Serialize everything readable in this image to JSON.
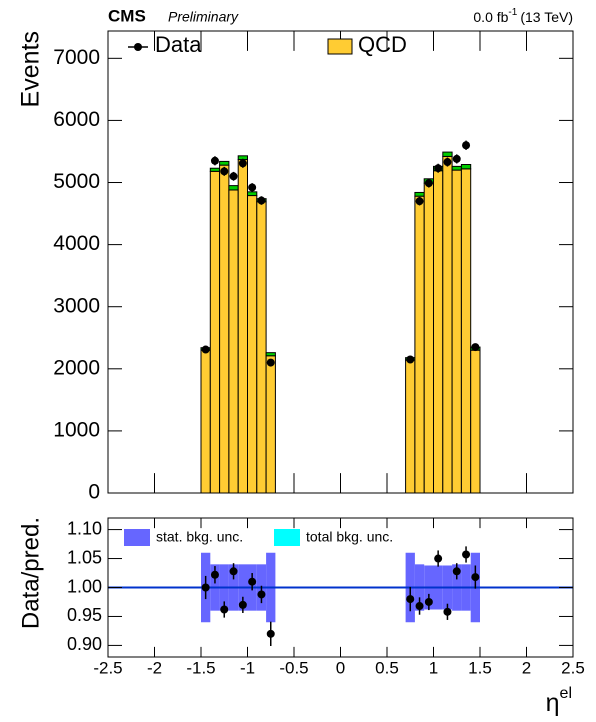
{
  "chart_data": [
    {
      "type": "histogram",
      "experiment": "CMS",
      "status": "Preliminary",
      "lumi": "0.0 fb",
      "lumi_sup": "-1",
      "energy": "(13 TeV)",
      "ylabel": "Events",
      "bins": [
        -1.5,
        -1.4,
        -1.3,
        -1.2,
        -1.1,
        -1.0,
        -0.9,
        -0.8,
        -0.7,
        -0.6,
        -0.5,
        -0.4,
        -0.3,
        -0.2,
        -0.1,
        0,
        0.1,
        0.2,
        0.3,
        0.4,
        0.5,
        0.6,
        0.7,
        0.8,
        0.9,
        1.0,
        1.1,
        1.2,
        1.3,
        1.4,
        1.5
      ],
      "series": [
        {
          "name": "QCD",
          "color": "#ffcc33",
          "values": [
            2300,
            5180,
            5280,
            4880,
            5370,
            4790,
            4690,
            2210,
            null,
            null,
            null,
            null,
            null,
            null,
            null,
            null,
            null,
            null,
            null,
            null,
            null,
            null,
            2140,
            4780,
            4990,
            5190,
            5420,
            5200,
            5220,
            2300
          ]
        },
        {
          "color": "#00cc00",
          "values": [
            40,
            50,
            60,
            70,
            60,
            60,
            50,
            50,
            null,
            null,
            null,
            null,
            null,
            null,
            null,
            null,
            null,
            null,
            null,
            null,
            null,
            null,
            40,
            60,
            70,
            70,
            70,
            60,
            70,
            50
          ]
        }
      ],
      "data": {
        "name": "Data",
        "color": "#000000",
        "values": [
          2310,
          5350,
          5180,
          5100,
          5310,
          4920,
          4710,
          2100,
          null,
          null,
          null,
          null,
          null,
          null,
          null,
          null,
          null,
          null,
          null,
          null,
          null,
          null,
          2150,
          4700,
          4990,
          5230,
          5330,
          5380,
          5600,
          2350
        ],
        "errors": [
          48,
          73,
          72,
          71,
          73,
          70,
          69,
          46,
          null,
          null,
          null,
          null,
          null,
          null,
          null,
          null,
          null,
          null,
          null,
          null,
          null,
          null,
          46,
          69,
          71,
          72,
          73,
          73,
          75,
          48
        ]
      },
      "xlim": [
        -2.5,
        2.5
      ],
      "xticks": [
        -2.5,
        -2,
        -1.5,
        -1,
        -0.5,
        0,
        0.5,
        1,
        1.5,
        2,
        2.5
      ],
      "ylim": [
        0,
        7440
      ],
      "yticks": [
        0,
        1000,
        2000,
        3000,
        4000,
        5000,
        6000,
        7000
      ]
    },
    {
      "type": "ratio",
      "ylabel": "Data/pred.",
      "xlabel": "η",
      "xlabel_sup": "el",
      "values": [
        1.0,
        1.022,
        0.962,
        1.028,
        0.97,
        1.01,
        0.988,
        0.92,
        null,
        null,
        null,
        null,
        null,
        null,
        null,
        null,
        null,
        null,
        null,
        null,
        null,
        null,
        0.98,
        0.968,
        0.975,
        1.05,
        0.958,
        1.028,
        1.057,
        1.018
      ],
      "errors": [
        0.02,
        0.015,
        0.014,
        0.014,
        0.014,
        0.015,
        0.015,
        0.021,
        null,
        null,
        null,
        null,
        null,
        null,
        null,
        null,
        null,
        null,
        null,
        null,
        null,
        null,
        0.021,
        0.015,
        0.014,
        0.014,
        0.014,
        0.014,
        0.014,
        0.02
      ],
      "band": {
        "name": "stat. bkg. unc.",
        "color": "#6666ff",
        "values": [
          0.06,
          0.04,
          0.04,
          0.04,
          0.04,
          0.04,
          0.04,
          0.06,
          null,
          null,
          null,
          null,
          null,
          null,
          null,
          null,
          null,
          null,
          null,
          null,
          null,
          null,
          0.06,
          0.04,
          0.038,
          0.038,
          0.038,
          0.04,
          0.04,
          0.06
        ]
      },
      "total_band": {
        "name": "total bkg. unc.",
        "color": "#00ffff"
      },
      "reference": 1,
      "reference_color": "#0033cc",
      "xlim": [
        -2.5,
        2.5
      ],
      "xticks": [
        -2.5,
        -2,
        -1.5,
        -1,
        -0.5,
        0,
        0.5,
        1,
        1.5,
        2,
        2.5
      ],
      "ylim": [
        0.88,
        1.12
      ],
      "yticks": [
        {
          "value": 0.9,
          "label": "0.90"
        },
        0.95,
        {
          "value": 1,
          "label": "1.00"
        },
        1.05,
        {
          "value": 1.1,
          "label": "1.10"
        }
      ]
    }
  ]
}
